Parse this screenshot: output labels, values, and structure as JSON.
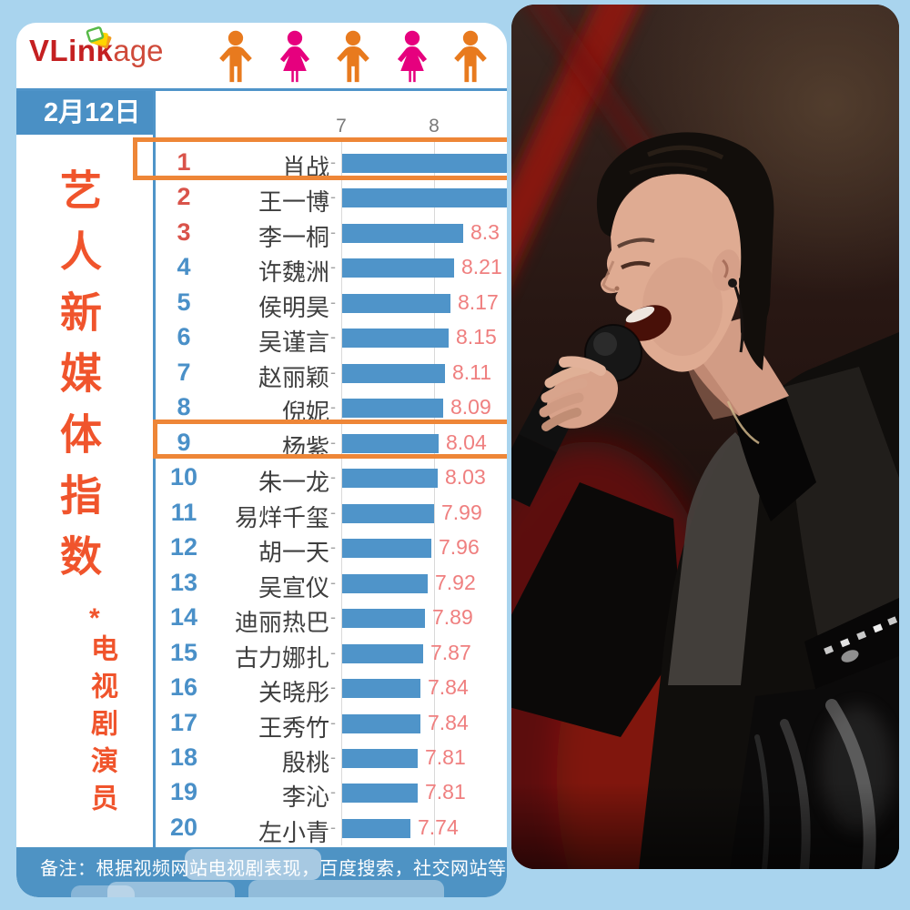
{
  "logo": {
    "bold": "VLink",
    "light": "age",
    "icon": "stacked-cards-logo-icon"
  },
  "header_icons": [
    "male",
    "female",
    "male",
    "female",
    "male"
  ],
  "date_badge": "2月12日",
  "side_title": "艺人新媒体指数",
  "side_star": "*",
  "side_subtitle": "电视剧演员",
  "axis": {
    "tick7": "7",
    "tick8": "8"
  },
  "footer": {
    "note": "备注：根据视频网站电视剧表现，百度搜索，社交网站等昨日"
  },
  "chart_data": {
    "type": "bar",
    "orientation": "horizontal",
    "title": "艺人新媒体指数 * 电视剧演员",
    "date": "2月12日",
    "x_ticks": [
      7,
      8
    ],
    "x_axis_start": 7,
    "bar_color": "#4f94c9",
    "rows": [
      {
        "rank": "1",
        "name": "肖战",
        "value": null,
        "value_label": "",
        "bar_clipped": true,
        "highlighted": true
      },
      {
        "rank": "2",
        "name": "王一博",
        "value": null,
        "value_label": "",
        "bar_clipped": true,
        "highlighted": false
      },
      {
        "rank": "3",
        "name": "李一桐",
        "value": 8.3,
        "value_label": "8.3",
        "bar_clipped": false,
        "highlighted": false
      },
      {
        "rank": "4",
        "name": "许魏洲",
        "value": 8.21,
        "value_label": "8.21",
        "bar_clipped": false,
        "highlighted": false
      },
      {
        "rank": "5",
        "name": "侯明昊",
        "value": 8.17,
        "value_label": "8.17",
        "bar_clipped": false,
        "highlighted": false
      },
      {
        "rank": "6",
        "name": "吴谨言",
        "value": 8.15,
        "value_label": "8.15",
        "bar_clipped": false,
        "highlighted": false
      },
      {
        "rank": "7",
        "name": "赵丽颖",
        "value": 8.11,
        "value_label": "8.11",
        "bar_clipped": false,
        "highlighted": false
      },
      {
        "rank": "8",
        "name": "倪妮",
        "value": 8.09,
        "value_label": "8.09",
        "bar_clipped": false,
        "highlighted": false
      },
      {
        "rank": "9",
        "name": "杨紫",
        "value": 8.04,
        "value_label": "8.04",
        "bar_clipped": false,
        "highlighted": true
      },
      {
        "rank": "10",
        "name": "朱一龙",
        "value": 8.03,
        "value_label": "8.03",
        "bar_clipped": false,
        "highlighted": false
      },
      {
        "rank": "11",
        "name": "易烊千玺",
        "value": 7.99,
        "value_label": "7.99",
        "bar_clipped": false,
        "highlighted": false
      },
      {
        "rank": "12",
        "name": "胡一天",
        "value": 7.96,
        "value_label": "7.96",
        "bar_clipped": false,
        "highlighted": false
      },
      {
        "rank": "13",
        "name": "吴宣仪",
        "value": 7.92,
        "value_label": "7.92",
        "bar_clipped": false,
        "highlighted": false
      },
      {
        "rank": "14",
        "name": "迪丽热巴",
        "value": 7.89,
        "value_label": "7.89",
        "bar_clipped": false,
        "highlighted": false
      },
      {
        "rank": "15",
        "name": "古力娜扎",
        "value": 7.87,
        "value_label": "7.87",
        "bar_clipped": false,
        "highlighted": false
      },
      {
        "rank": "16",
        "name": "关晓彤",
        "value": 7.84,
        "value_label": "7.84",
        "bar_clipped": false,
        "highlighted": false
      },
      {
        "rank": "17",
        "name": "王秀竹",
        "value": 7.84,
        "value_label": "7.84",
        "bar_clipped": false,
        "highlighted": false
      },
      {
        "rank": "18",
        "name": "殷桃",
        "value": 7.81,
        "value_label": "7.81",
        "bar_clipped": false,
        "highlighted": false
      },
      {
        "rank": "19",
        "name": "李沁",
        "value": 7.81,
        "value_label": "7.81",
        "bar_clipped": false,
        "highlighted": false
      },
      {
        "rank": "20",
        "name": "左小青",
        "value": 7.74,
        "value_label": "7.74",
        "bar_clipped": false,
        "highlighted": false
      }
    ]
  },
  "colors": {
    "frame_blue": "#a9d4ee",
    "bar_blue": "#4f94c9",
    "panel_blue": "#4a90c5",
    "footer_blue": "#4e93c4",
    "highlight_orange": "#ee8637",
    "rank_top3_red": "#d9534a",
    "rank_blue": "#4a90c8",
    "value_pink": "#ef7f7f",
    "title_orange": "#f0542c",
    "icon_male_orange": "#e87a1e",
    "icon_female_magenta": "#e6007e"
  }
}
